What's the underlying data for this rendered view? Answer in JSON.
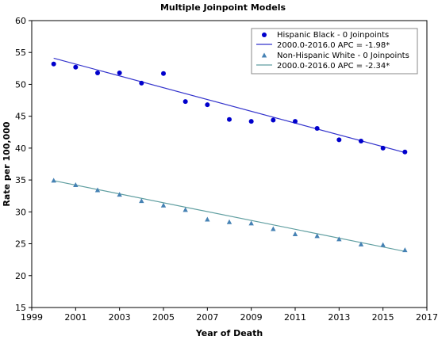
{
  "chart_data": {
    "type": "scatter",
    "title": "Multiple Joinpoint Models",
    "xlabel": "Year of Death",
    "ylabel": "Rate per 100,000",
    "xlim": [
      1999,
      2017
    ],
    "ylim": [
      15,
      60
    ],
    "x_ticks": [
      1999,
      2001,
      2003,
      2005,
      2007,
      2009,
      2011,
      2013,
      2015,
      2017
    ],
    "y_ticks": [
      15,
      20,
      25,
      30,
      35,
      40,
      45,
      50,
      55,
      60
    ],
    "grid": false,
    "legend_position": "top-right",
    "series": [
      {
        "name": "Hispanic Black - 0 Joinpoints",
        "marker": "circle",
        "color": "#0000cc",
        "x": [
          2000,
          2001,
          2002,
          2003,
          2004,
          2005,
          2006,
          2007,
          2008,
          2009,
          2010,
          2011,
          2012,
          2013,
          2014,
          2015,
          2016
        ],
        "y": [
          53.2,
          52.7,
          51.8,
          51.8,
          50.2,
          51.7,
          47.3,
          46.8,
          44.5,
          44.2,
          44.4,
          44.2,
          43.1,
          41.3,
          41.1,
          40.0,
          39.4
        ],
        "fit": {
          "label": "2000.0-2016.0 APC  = -1.98*",
          "x": [
            2000,
            2016
          ],
          "y": [
            54.1,
            39.3
          ],
          "color": "#3333cc"
        }
      },
      {
        "name": "Non-Hispanic White - 0 Joinpoints",
        "marker": "triangle",
        "color": "#4682b4",
        "x": [
          2000,
          2001,
          2002,
          2003,
          2004,
          2005,
          2006,
          2007,
          2008,
          2009,
          2010,
          2011,
          2012,
          2013,
          2014,
          2015,
          2016
        ],
        "y": [
          34.9,
          34.2,
          33.4,
          32.7,
          31.7,
          31.0,
          30.3,
          28.8,
          28.4,
          28.2,
          27.3,
          26.5,
          26.2,
          25.7,
          24.9,
          24.8,
          24.0
        ],
        "fit": {
          "label": "2000.0-2016.0 APC  = -2.34*",
          "x": [
            2000,
            2016
          ],
          "y": [
            34.9,
            23.8
          ],
          "color": "#5f9ea0"
        }
      }
    ]
  }
}
